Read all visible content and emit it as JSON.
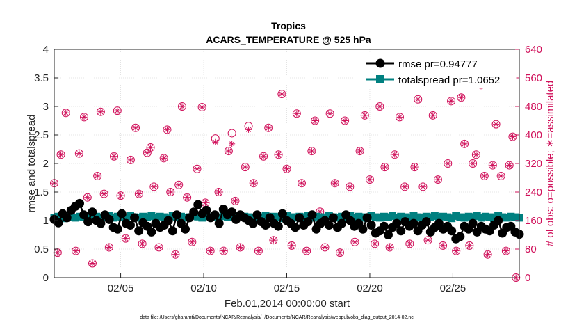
{
  "chart_data": {
    "type": "line",
    "title": "Tropics",
    "subtitle": "ACARS_TEMPERATURE @ 525 hPa",
    "xlabel": "Feb.01,2014 00:00:00 start",
    "ylabel_left": "rmse and totalspread",
    "ylabel_right": "# of obs: o=possible; ∗=assimilated",
    "footer": "data file: /Users/gharamti/Documents/NCAR/Reanalysis/~/Documents/NCAR/Reanalysis/webpub/obs_diag_output_2014-02.nc",
    "x_range_days": [
      1,
      29
    ],
    "x_ticks": [
      {
        "day": 5,
        "label": "02/05"
      },
      {
        "day": 10,
        "label": "02/10"
      },
      {
        "day": 15,
        "label": "02/15"
      },
      {
        "day": 20,
        "label": "02/20"
      },
      {
        "day": 25,
        "label": "02/25"
      }
    ],
    "ylim_left": [
      0,
      4
    ],
    "yticks_left": [
      "0",
      "0.5",
      "1",
      "1.5",
      "2",
      "2.5",
      "3",
      "3.5",
      "4"
    ],
    "ylim_right": [
      0,
      640
    ],
    "yticks_right": [
      "0",
      "80",
      "160",
      "240",
      "320",
      "400",
      "480",
      "560",
      "640"
    ],
    "grid": true,
    "legend_position": "top-right",
    "series": [
      {
        "name": "rmse pr=0.94777",
        "color": "#000000",
        "marker": "filled-circle",
        "values": [
          1.02,
          0.96,
          1.12,
          1.05,
          1.18,
          1.25,
          1.3,
          1.1,
          0.98,
          1.15,
          1.0,
          0.95,
          1.1,
          1.02,
          0.88,
          0.85,
          1.12,
          0.95,
          0.92,
          1.05,
          0.82,
          0.96,
          0.9,
          0.8,
          0.95,
          0.88,
          0.92,
          1.0,
          0.82,
          1.1,
          0.95,
          0.85,
          1.05,
          1.15,
          1.28,
          1.12,
          1.18,
          1.05,
          1.1,
          0.95,
          1.2,
          1.1,
          1.15,
          1.02,
          1.1,
          1.05,
          1.0,
          0.95,
          1.1,
          0.98,
          0.92,
          1.05,
          0.95,
          0.9,
          1.12,
          1.0,
          0.95,
          0.88,
          1.05,
          0.92,
          0.98,
          1.1,
          0.85,
          0.95,
          1.0,
          0.92,
          1.05,
          0.88,
          0.95,
          1.1,
          1.0,
          0.9,
          0.95,
          0.85,
          1.05,
          0.92,
          0.78,
          0.82,
          0.9,
          0.75,
          0.88,
          0.95,
          0.82,
          0.98,
          0.9,
          0.95,
          0.82,
          0.92,
          0.98,
          0.8,
          0.88,
          0.95,
          0.85,
          0.9,
          0.82,
          0.68,
          0.72,
          0.9,
          0.85,
          0.95,
          0.8,
          0.9,
          0.85,
          0.82,
          0.92,
          1.0,
          0.78,
          0.88,
          0.9,
          0.8,
          0.76
        ]
      },
      {
        "name": "totalspread pr=1.0652",
        "color": "#008080",
        "marker": "filled-square",
        "values": [
          1.05,
          1.07,
          1.04,
          1.08,
          1.06,
          1.05,
          1.07,
          1.06,
          1.08,
          1.05,
          1.07,
          1.04,
          1.06,
          1.08,
          1.05,
          1.07,
          1.06,
          1.04,
          1.08,
          1.06,
          1.05,
          1.07,
          1.06,
          1.08,
          1.05,
          1.07,
          1.06,
          1.04,
          1.08,
          1.06,
          1.07,
          1.05,
          1.06,
          1.08,
          1.07,
          1.05,
          1.08,
          1.06,
          1.07,
          1.05,
          1.08,
          1.06,
          1.07,
          1.05,
          1.08,
          1.07,
          1.06,
          1.05,
          1.07,
          1.06,
          1.08,
          1.05,
          1.07,
          1.06,
          1.04,
          1.08,
          1.06,
          1.05,
          1.07,
          1.06,
          1.08,
          1.05,
          1.07,
          1.06,
          1.04,
          1.08,
          1.06,
          1.05,
          1.07,
          1.06,
          1.08,
          1.05,
          1.07,
          1.06,
          1.04,
          1.08,
          1.06,
          1.05,
          1.07,
          1.06,
          1.08,
          1.05,
          1.07,
          1.06,
          1.04,
          1.08,
          1.06,
          1.05,
          1.07,
          1.06,
          1.08,
          1.05,
          1.07,
          1.06,
          1.04,
          1.08,
          1.06,
          1.05,
          1.07,
          1.06,
          1.08,
          1.05,
          1.07,
          1.06,
          1.04,
          1.08,
          1.06,
          1.05,
          1.07,
          1.06,
          1.05
        ]
      }
    ],
    "obs_counts": {
      "axis": "right",
      "color": "#d0105a",
      "possible_marker": "open-circle",
      "assimilated_marker": "asterisk",
      "points": [
        [
          1.0,
          265,
          265
        ],
        [
          1.2,
          70,
          70
        ],
        [
          1.4,
          345,
          345
        ],
        [
          1.7,
          462,
          462
        ],
        [
          2.0,
          180,
          180
        ],
        [
          2.3,
          75,
          75
        ],
        [
          2.5,
          348,
          348
        ],
        [
          2.8,
          450,
          450
        ],
        [
          3.0,
          225,
          225
        ],
        [
          3.3,
          40,
          40
        ],
        [
          3.6,
          285,
          285
        ],
        [
          3.8,
          465,
          465
        ],
        [
          4.0,
          235,
          235
        ],
        [
          4.3,
          85,
          85
        ],
        [
          4.6,
          340,
          340
        ],
        [
          4.8,
          468,
          468
        ],
        [
          5.0,
          230,
          230
        ],
        [
          5.3,
          110,
          110
        ],
        [
          5.6,
          330,
          330
        ],
        [
          5.9,
          420,
          420
        ],
        [
          6.1,
          235,
          235
        ],
        [
          6.3,
          95,
          95
        ],
        [
          6.6,
          350,
          350
        ],
        [
          6.8,
          365,
          365
        ],
        [
          7.0,
          255,
          255
        ],
        [
          7.3,
          85,
          85
        ],
        [
          7.6,
          335,
          335
        ],
        [
          7.8,
          415,
          415
        ],
        [
          8.0,
          240,
          240
        ],
        [
          8.3,
          65,
          65
        ],
        [
          8.5,
          260,
          260
        ],
        [
          8.7,
          480,
          480
        ],
        [
          9.0,
          225,
          225
        ],
        [
          9.3,
          100,
          100
        ],
        [
          9.6,
          305,
          305
        ],
        [
          9.9,
          478,
          478
        ],
        [
          10.1,
          210,
          210
        ],
        [
          10.4,
          75,
          75
        ],
        [
          10.7,
          390,
          380
        ],
        [
          10.9,
          240,
          240
        ],
        [
          11.2,
          75,
          75
        ],
        [
          11.5,
          355,
          355
        ],
        [
          11.7,
          405,
          375
        ],
        [
          11.9,
          215,
          215
        ],
        [
          12.2,
          85,
          85
        ],
        [
          12.5,
          310,
          310
        ],
        [
          12.7,
          425,
          415
        ],
        [
          13.0,
          265,
          265
        ],
        [
          13.3,
          75,
          75
        ],
        [
          13.6,
          340,
          340
        ],
        [
          13.9,
          420,
          420
        ],
        [
          14.2,
          105,
          105
        ],
        [
          14.5,
          345,
          345
        ],
        [
          14.7,
          515,
          515
        ],
        [
          15.0,
          305,
          305
        ],
        [
          15.3,
          90,
          90
        ],
        [
          15.6,
          460,
          460
        ],
        [
          15.9,
          265,
          265
        ],
        [
          16.2,
          75,
          75
        ],
        [
          16.5,
          355,
          355
        ],
        [
          16.7,
          440,
          440
        ],
        [
          17.0,
          185,
          185
        ],
        [
          17.3,
          85,
          85
        ],
        [
          17.6,
          460,
          460
        ],
        [
          17.9,
          265,
          265
        ],
        [
          18.2,
          70,
          70
        ],
        [
          18.5,
          440,
          440
        ],
        [
          18.8,
          255,
          255
        ],
        [
          19.1,
          100,
          100
        ],
        [
          19.4,
          355,
          355
        ],
        [
          19.7,
          455,
          455
        ],
        [
          20.0,
          275,
          275
        ],
        [
          20.3,
          95,
          95
        ],
        [
          20.6,
          480,
          480
        ],
        [
          20.9,
          310,
          310
        ],
        [
          21.2,
          85,
          85
        ],
        [
          21.5,
          345,
          345
        ],
        [
          21.8,
          450,
          450
        ],
        [
          22.1,
          255,
          255
        ],
        [
          22.4,
          95,
          95
        ],
        [
          22.7,
          310,
          310
        ],
        [
          22.9,
          500,
          500
        ],
        [
          23.2,
          255,
          255
        ],
        [
          23.5,
          105,
          105
        ],
        [
          23.8,
          455,
          455
        ],
        [
          24.1,
          275,
          275
        ],
        [
          24.4,
          90,
          90
        ],
        [
          24.7,
          320,
          320
        ],
        [
          24.9,
          495,
          495
        ],
        [
          25.2,
          75,
          75
        ],
        [
          25.5,
          505,
          505
        ],
        [
          25.7,
          375,
          375
        ],
        [
          26.0,
          90,
          90
        ],
        [
          26.2,
          320,
          320
        ],
        [
          26.4,
          345,
          345
        ],
        [
          26.7,
          540,
          540
        ],
        [
          26.9,
          285,
          285
        ],
        [
          27.1,
          65,
          65
        ],
        [
          27.4,
          315,
          315
        ],
        [
          27.6,
          430,
          430
        ],
        [
          27.9,
          285,
          285
        ],
        [
          28.2,
          75,
          75
        ],
        [
          28.4,
          315,
          315
        ],
        [
          28.6,
          395,
          395
        ],
        [
          28.8,
          0,
          0
        ]
      ]
    }
  }
}
